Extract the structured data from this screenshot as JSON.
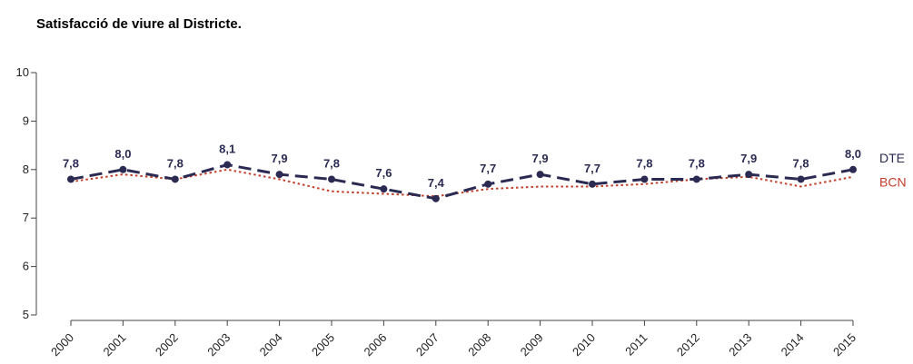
{
  "chart_data": {
    "type": "line",
    "title": "Satisfacció de viure al Districte.",
    "categories": [
      "2000",
      "2001",
      "2002",
      "2003",
      "2004",
      "2005",
      "2006",
      "2007",
      "2008",
      "2009",
      "2010",
      "2011",
      "2012",
      "2013",
      "2014",
      "2015"
    ],
    "series": [
      {
        "name": "DTE",
        "values": [
          7.8,
          8.0,
          7.8,
          8.1,
          7.9,
          7.8,
          7.6,
          7.4,
          7.7,
          7.9,
          7.7,
          7.8,
          7.8,
          7.9,
          7.8,
          8.0
        ],
        "labels": [
          "7,8",
          "8,0",
          "7,8",
          "8,1",
          "7,9",
          "7,8",
          "7,6",
          "7,4",
          "7,7",
          "7,9",
          "7,7",
          "7,8",
          "7,8",
          "7,9",
          "7,8",
          "8,0"
        ],
        "color": "#2b2a52",
        "style": "dashed",
        "markers": true
      },
      {
        "name": "BCN",
        "values": [
          7.75,
          7.9,
          7.8,
          8.0,
          7.8,
          7.55,
          7.5,
          7.45,
          7.6,
          7.65,
          7.65,
          7.7,
          7.8,
          7.85,
          7.65,
          7.85
        ],
        "color": "#c0402b",
        "style": "dotted",
        "markers": false
      }
    ],
    "yticks": [
      "5",
      "6",
      "7",
      "8",
      "9",
      "10"
    ],
    "ylim": [
      5,
      10
    ],
    "grid": false,
    "legend_position": "right"
  }
}
